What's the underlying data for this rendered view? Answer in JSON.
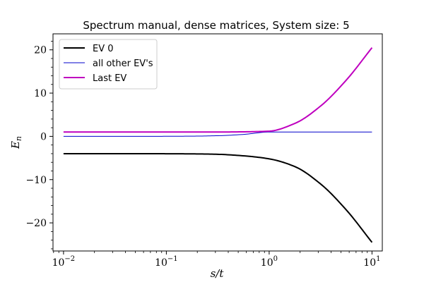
{
  "chart_data": {
    "type": "line",
    "title": "Spectrum manual, dense matrices, System size: 5",
    "xlabel": "s/t",
    "ylabel": "E_n",
    "xscale": "log",
    "xlim": [
      0.0079,
      12.6
    ],
    "ylim": [
      -26.5,
      23.7
    ],
    "grid": false,
    "legend_position": "top-left",
    "xticks": [
      {
        "value": 0.01,
        "base": "10",
        "exp": "−2"
      },
      {
        "value": 0.1,
        "base": "10",
        "exp": "−1"
      },
      {
        "value": 1,
        "base": "10",
        "exp": "0"
      },
      {
        "value": 10,
        "base": "10",
        "exp": "1"
      }
    ],
    "yticks": [
      {
        "value": 20,
        "label": "20"
      },
      {
        "value": 10,
        "label": "10"
      },
      {
        "value": 0,
        "label": "0"
      },
      {
        "value": -10,
        "label": "−10"
      },
      {
        "value": -20,
        "label": "−20"
      }
    ],
    "x": [
      0.01,
      0.0178,
      0.0316,
      0.0562,
      0.1,
      0.178,
      0.316,
      0.562,
      1.0,
      1.78,
      3.16,
      5.62,
      10.0
    ],
    "series": [
      {
        "name": "EV 0",
        "color": "#000000",
        "width": 2,
        "values": [
          -4.0,
          -4.0,
          -4.0,
          -4.0,
          -4.02,
          -4.05,
          -4.15,
          -4.5,
          -5.2,
          -7.0,
          -11.0,
          -17.0,
          -24.5
        ]
      },
      {
        "name": "all other EV's",
        "color": "#0000cc",
        "width": 1,
        "values": [
          0.0,
          0.0,
          0.0,
          0.0,
          0.02,
          0.05,
          0.15,
          0.45,
          1.0,
          1.0,
          1.0,
          1.0,
          1.0
        ]
      },
      {
        "name": "Last EV",
        "color": "#bf00bf",
        "width": 2,
        "values": [
          1.0,
          1.0,
          1.0,
          1.0,
          1.0,
          1.0,
          1.0,
          1.05,
          1.2,
          3.0,
          7.0,
          13.0,
          20.5
        ]
      }
    ]
  }
}
